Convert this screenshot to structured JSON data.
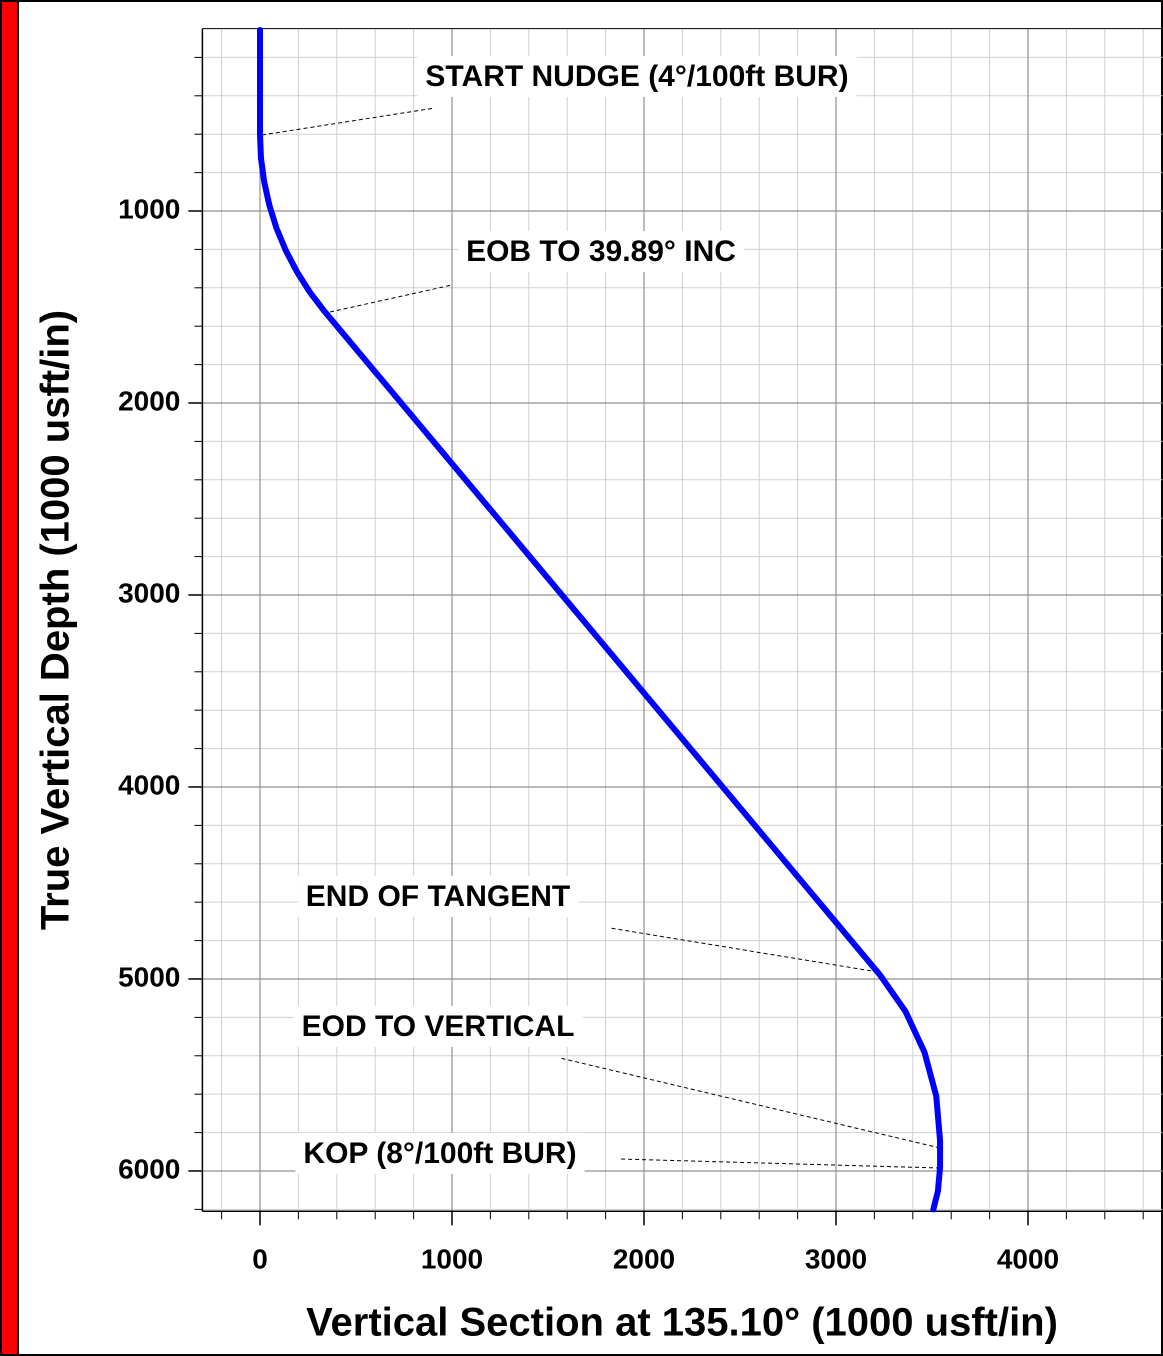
{
  "chart_data": {
    "type": "line",
    "x_label": "Vertical Section at 135.10° (1000 usft/in)",
    "y_label": "True Vertical Depth (1000 usft/in)",
    "x": [
      0,
      0,
      5,
      22,
      49,
      86,
      134,
      192,
      259,
      333,
      3229,
      3362,
      3461,
      3522,
      3542,
      3542,
      3531,
      3507
    ],
    "values": [
      57,
      600,
      725,
      849,
      971,
      1090,
      1205,
      1316,
      1422,
      1519,
      4979,
      5169,
      5382,
      5609,
      5842,
      5980,
      6104,
      6200
    ],
    "color": "#0000ff",
    "annotations": [
      "START NUDGE (4°/100ft BUR)",
      "EOB TO 39.89° INC",
      "END OF TANGENT",
      "EOD TO VERTICAL",
      "KOP (8°/100ft BUR)"
    ],
    "xlim": [
      -300,
      4700
    ],
    "ylim": [
      6210,
      50
    ],
    "xticks": [
      0,
      1000,
      2000,
      3000,
      4000
    ],
    "yticks": [
      1000,
      2000,
      3000,
      4000,
      5000,
      6000
    ],
    "xminor": [
      -200,
      200,
      400,
      600,
      800,
      1200,
      1400,
      1600,
      1800,
      2200,
      2400,
      2600,
      2800,
      3200,
      3400,
      3600,
      3800,
      4200,
      4400,
      4600
    ],
    "yminor": [
      200,
      400,
      600,
      800,
      1200,
      1400,
      1600,
      1800,
      2200,
      2400,
      2600,
      2800,
      3200,
      3400,
      3600,
      3800,
      4200,
      4400,
      4600,
      4800,
      5200,
      5400,
      5600,
      5800,
      6200
    ],
    "grid": true
  }
}
